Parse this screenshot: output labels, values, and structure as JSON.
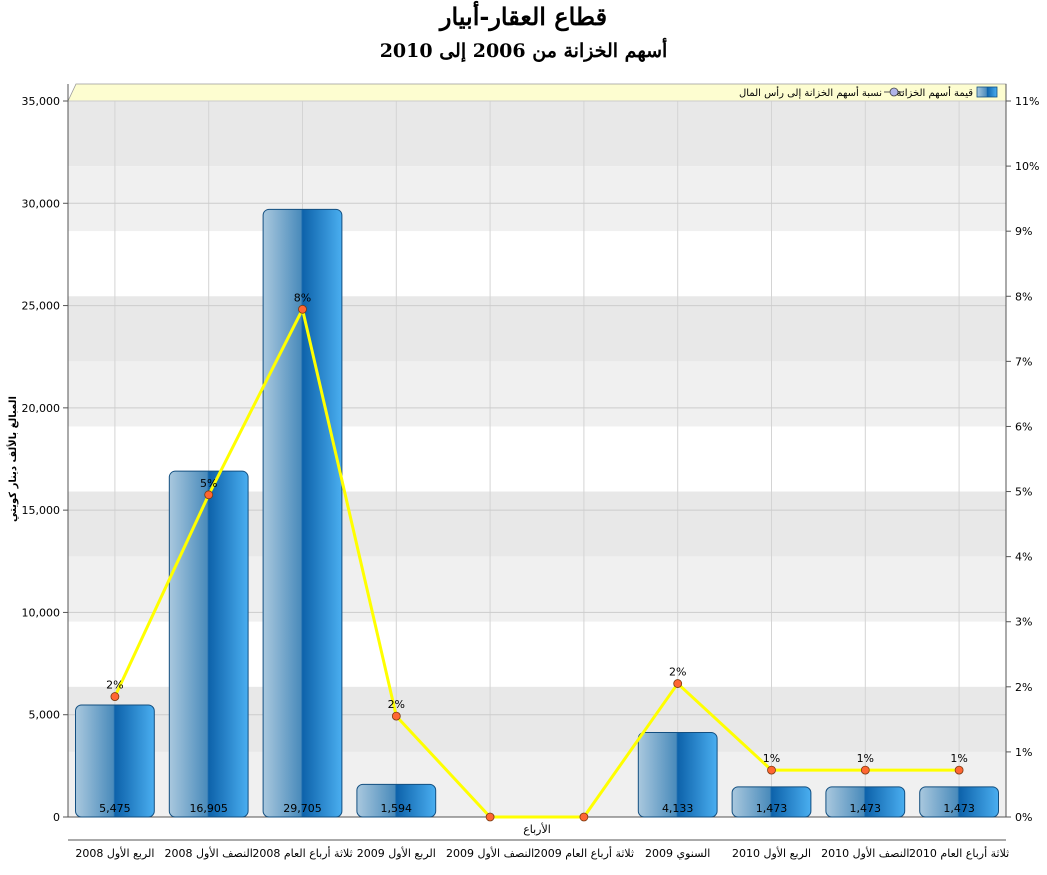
{
  "chart_data": {
    "type": "bar",
    "title": "قطاع العقار-أبيار",
    "subtitle": "أسهم الخزانة من 2006 إلى 2010",
    "xlabel": "الأرباع",
    "ylabel": "المبالغ بالألف دينار كويتي",
    "ylim": [
      0,
      35000
    ],
    "y_ticks": [
      "0",
      "5,000",
      "10,000",
      "15,000",
      "20,000",
      "25,000",
      "30,000",
      "35,000"
    ],
    "y2lim": [
      0,
      11
    ],
    "y2_ticks": [
      "0%",
      "1%",
      "2%",
      "3%",
      "4%",
      "5%",
      "6%",
      "7%",
      "8%",
      "9%",
      "10%",
      "11%"
    ],
    "legend_position": "top-right",
    "grid": true,
    "categories": [
      "الربع الأول 2008",
      "النصف الأول 2008",
      "ثلاثة أرباع العام 2008",
      "الربع الأول 2009",
      "النصف الأول 2009",
      "ثلاثة أرباع العام 2009",
      "السنوي 2009",
      "الربع الأول 2010",
      "النصف الأول 2010",
      "ثلاثة أرباع العام 2010"
    ],
    "series": [
      {
        "name": "قيمة أسهم الخزانة",
        "type": "bar",
        "axis": "left",
        "color": "#2a8ad4",
        "values": [
          5475,
          16905,
          29705,
          1594,
          0,
          0,
          4133,
          1473,
          1473,
          1473
        ],
        "labels": [
          "5,475",
          "16,905",
          "29,705",
          "1,594",
          "",
          "",
          "4,133",
          "1,473",
          "1,473",
          "1,473"
        ]
      },
      {
        "name": "نسبة أسهم الخزانة إلى رأس المال",
        "type": "line",
        "axis": "right",
        "color": "#ffff00",
        "marker_color": "#ff6633",
        "values": [
          1.85,
          4.95,
          7.8,
          1.55,
          0,
          0,
          2.05,
          0.72,
          0.72,
          0.72
        ],
        "labels": [
          "2%",
          "5%",
          "8%",
          "2%",
          "",
          "",
          "2%",
          "1%",
          "1%",
          "1%"
        ]
      }
    ]
  }
}
